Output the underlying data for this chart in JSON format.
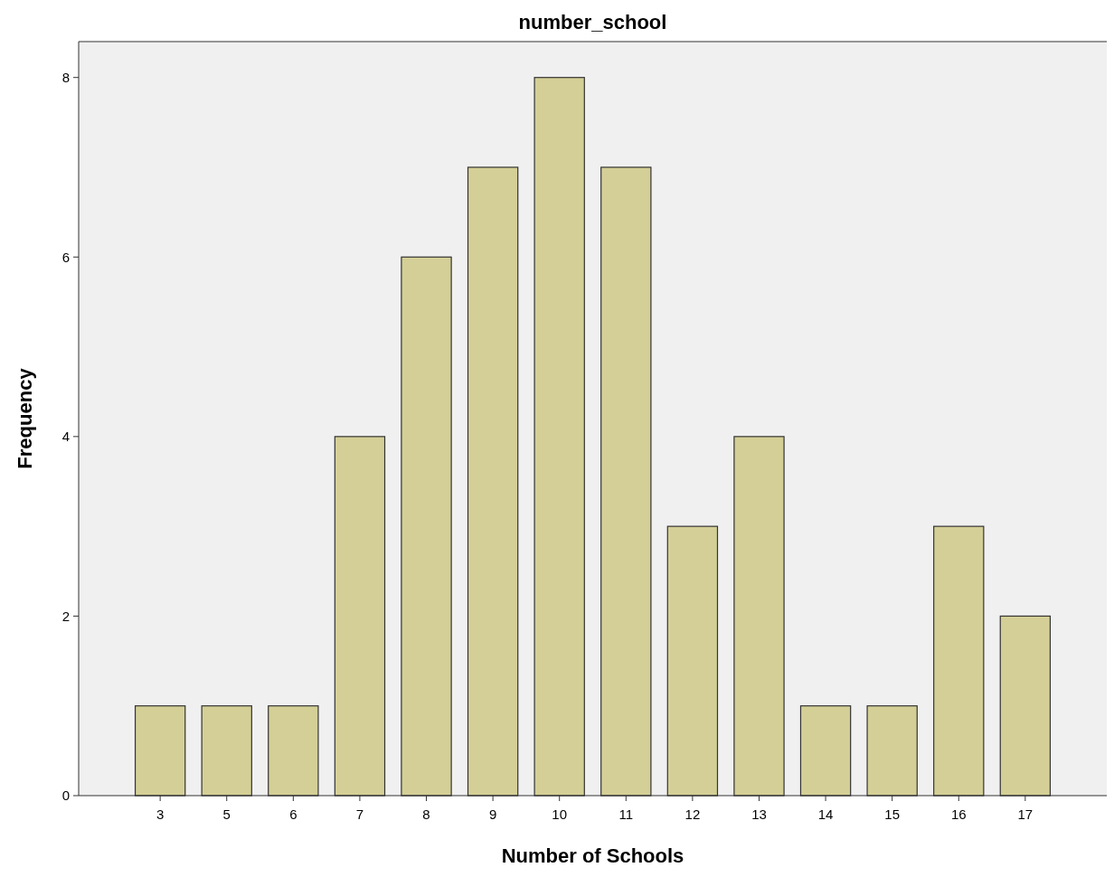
{
  "chart_data": {
    "type": "bar",
    "title": "number_school",
    "xlabel": "Number of Schools",
    "ylabel": "Frequency",
    "categories": [
      "3",
      "5",
      "6",
      "7",
      "8",
      "9",
      "10",
      "11",
      "12",
      "13",
      "14",
      "15",
      "16",
      "17"
    ],
    "values": [
      1,
      1,
      1,
      4,
      6,
      7,
      8,
      7,
      3,
      4,
      1,
      1,
      3,
      2
    ],
    "color": "#d4cf96",
    "ylim": [
      0,
      8.4
    ],
    "yticks": [
      0,
      2,
      4,
      6,
      8
    ]
  }
}
